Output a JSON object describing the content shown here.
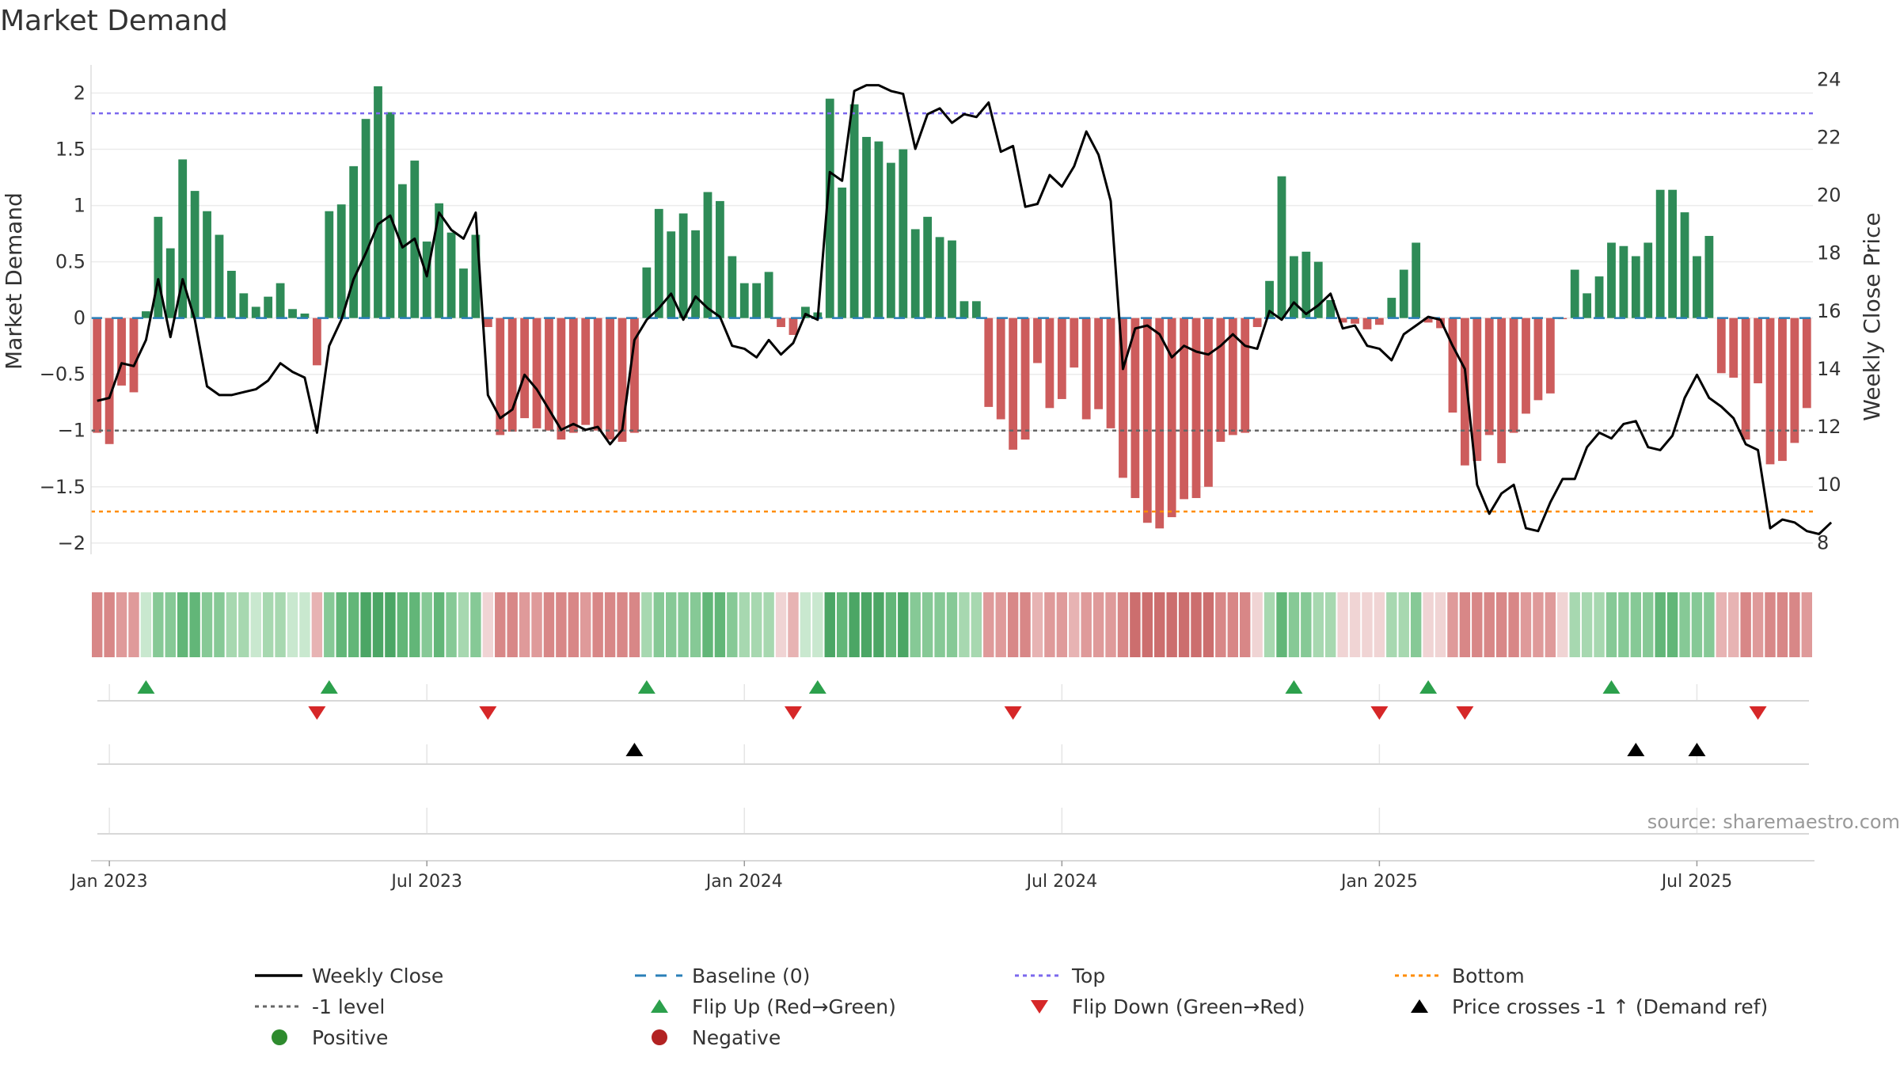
{
  "chart_data": {
    "type": "bar",
    "title": "Market Demand",
    "ylabel": "Market Demand",
    "y2label": "Weekly Close Price",
    "ylim": [
      -2.1,
      2.25
    ],
    "y2lim": [
      7.6,
      24.5
    ],
    "yticks": [
      {
        "v": 2,
        "label": "2"
      },
      {
        "v": 1.5,
        "label": "1.5"
      },
      {
        "v": 1,
        "label": "1"
      },
      {
        "v": 0.5,
        "label": "0.5"
      },
      {
        "v": 0,
        "label": "0"
      },
      {
        "v": -0.5,
        "label": "−0.5"
      },
      {
        "v": -1,
        "label": "−1"
      },
      {
        "v": -1.5,
        "label": "−1.5"
      },
      {
        "v": -2,
        "label": "−2"
      }
    ],
    "y2ticks": [
      {
        "v": 24,
        "label": "24"
      },
      {
        "v": 22,
        "label": "22"
      },
      {
        "v": 20,
        "label": "20"
      },
      {
        "v": 18,
        "label": "18"
      },
      {
        "v": 16,
        "label": "16"
      },
      {
        "v": 14,
        "label": "14"
      },
      {
        "v": 12,
        "label": "12"
      },
      {
        "v": 10,
        "label": "10"
      },
      {
        "v": 8,
        "label": "8"
      }
    ],
    "xticks": [
      {
        "week": 1.5,
        "label": "Jan 2023"
      },
      {
        "week": 27.5,
        "label": "Jul 2023"
      },
      {
        "week": 53.5,
        "label": "Jan 2024"
      },
      {
        "week": 79.5,
        "label": "Jul 2024"
      },
      {
        "week": 105.5,
        "label": "Jan 2025"
      },
      {
        "week": 131.5,
        "label": "Jul 2025"
      }
    ],
    "levels": {
      "top": 1.82,
      "bottom": -1.72,
      "minus_one": -1,
      "baseline": 0
    },
    "demand": [
      -1.02,
      -1.12,
      -0.6,
      -0.66,
      0.06,
      0.9,
      0.62,
      1.41,
      1.13,
      0.95,
      0.74,
      0.42,
      0.22,
      0.1,
      0.19,
      0.31,
      0.08,
      0.04,
      -0.42,
      0.95,
      1.01,
      1.35,
      1.77,
      2.06,
      1.83,
      1.19,
      1.4,
      0.68,
      1.02,
      0.76,
      0.44,
      0.74,
      -0.08,
      -1.04,
      -1.01,
      -0.89,
      -0.98,
      -1.0,
      -1.08,
      -1.02,
      -0.95,
      -1.0,
      -1.08,
      -1.1,
      -1.02,
      0.45,
      0.97,
      0.77,
      0.93,
      0.78,
      1.12,
      1.04,
      0.55,
      0.31,
      0.31,
      0.41,
      -0.08,
      -0.15,
      0.1,
      0.05,
      1.95,
      1.16,
      1.9,
      1.61,
      1.57,
      1.38,
      1.5,
      0.79,
      0.9,
      0.72,
      0.69,
      0.15,
      0.15,
      -0.79,
      -0.9,
      -1.17,
      -1.08,
      -0.4,
      -0.8,
      -0.72,
      -0.44,
      -0.9,
      -0.81,
      -0.98,
      -1.42,
      -1.6,
      -1.82,
      -1.87,
      -1.77,
      -1.61,
      -1.6,
      -1.5,
      -1.1,
      -1.04,
      -1.02,
      -0.08,
      0.33,
      1.26,
      0.55,
      0.59,
      0.5,
      0.16,
      -0.04,
      -0.05,
      -0.1,
      -0.06,
      0.18,
      0.43,
      0.67,
      -0.04,
      -0.09,
      -0.84,
      -1.31,
      -1.27,
      -1.04,
      -1.29,
      -1.02,
      -0.85,
      -0.73,
      -0.67,
      -0.01,
      0.43,
      0.22,
      0.37,
      0.67,
      0.64,
      0.55,
      0.67,
      1.14,
      1.14,
      0.94,
      0.55,
      0.73,
      -0.49,
      -0.53,
      -1.08,
      -0.58,
      -1.3,
      -1.27,
      -1.11,
      -0.8
    ],
    "close": [
      12.9,
      13.0,
      14.2,
      14.1,
      15.0,
      17.1,
      15.1,
      17.1,
      15.7,
      13.4,
      13.1,
      13.1,
      13.2,
      13.3,
      13.6,
      14.2,
      13.9,
      13.7,
      11.8,
      14.8,
      15.7,
      17.1,
      18.0,
      19.0,
      19.3,
      18.2,
      18.5,
      17.2,
      19.4,
      18.8,
      18.5,
      19.4,
      13.1,
      12.3,
      12.6,
      13.8,
      13.3,
      12.6,
      11.9,
      12.1,
      11.9,
      12.0,
      11.4,
      11.9,
      15.0,
      15.7,
      16.1,
      16.6,
      15.7,
      16.5,
      16.1,
      15.8,
      14.8,
      14.7,
      14.4,
      15.0,
      14.5,
      14.9,
      15.9,
      15.7,
      20.8,
      20.5,
      23.6,
      23.8,
      23.8,
      23.6,
      23.5,
      21.6,
      22.8,
      23.0,
      22.5,
      22.8,
      22.7,
      23.2,
      21.5,
      21.7,
      19.6,
      19.7,
      20.7,
      20.3,
      21.0,
      22.2,
      21.4,
      19.8,
      14.0,
      15.4,
      15.5,
      15.2,
      14.4,
      14.8,
      14.6,
      14.5,
      14.8,
      15.2,
      14.8,
      14.7,
      16.0,
      15.7,
      16.3,
      15.9,
      16.2,
      16.6,
      15.4,
      15.5,
      14.8,
      14.7,
      14.3,
      15.2,
      15.5,
      15.8,
      15.7,
      14.8,
      14.0,
      10.0,
      9.0,
      9.7,
      10.0,
      8.5,
      8.4,
      9.4,
      10.2,
      10.2,
      11.3,
      11.8,
      11.6,
      12.1,
      12.2,
      11.3,
      11.2,
      11.7,
      13.0,
      13.8,
      13.0,
      12.7,
      12.3,
      11.4,
      11.2,
      8.5,
      8.8,
      8.7,
      8.4,
      8.3,
      8.7
    ],
    "heat_colors": {
      "pos": [
        "#c9e8cf",
        "#a7d8b0",
        "#86c996",
        "#62b678",
        "#4ba665"
      ],
      "neg": [
        "#f0d4d4",
        "#e7b3b3",
        "#df9a9a",
        "#d88787",
        "#cc6e6e"
      ]
    },
    "flip_up_weeks": [
      4.5,
      19.5,
      45.5,
      59.5,
      98.5,
      109.5,
      124.5
    ],
    "flip_down_weeks": [
      18.5,
      32.5,
      57.5,
      75.5,
      105.5,
      112.5,
      136.5
    ],
    "cross_weeks": [
      44.5,
      126.5,
      131.5
    ],
    "source": "source: sharemaestro.com",
    "legend": [
      {
        "label": "Weekly Close",
        "icon": "line-solid",
        "color": "#000000"
      },
      {
        "label": "Baseline (0)",
        "icon": "line-dash",
        "color": "#2a7fb8"
      },
      {
        "label": "Top",
        "icon": "line-dot",
        "color": "#7b68ee"
      },
      {
        "label": "Bottom",
        "icon": "line-dot",
        "color": "#ff8c00"
      },
      {
        "label": "-1 level",
        "icon": "line-dot",
        "color": "#666666"
      },
      {
        "label": "Flip Up (Red→Green)",
        "icon": "triangle-up",
        "color": "#2ca04c"
      },
      {
        "label": "Flip Down (Green→Red)",
        "icon": "triangle-down",
        "color": "#d62728"
      },
      {
        "label": "Price crosses -1 ↑ (Demand ref)",
        "icon": "triangle-up",
        "color": "#000000"
      },
      {
        "label": "Positive",
        "icon": "circle",
        "color": "#2e8b2e"
      },
      {
        "label": "Negative",
        "icon": "circle",
        "color": "#b22222"
      }
    ],
    "colors": {
      "pos_bar": "#2e8b57",
      "neg_bar": "#cd5c5c",
      "close_line": "#000000",
      "baseline": "#2a7fb8",
      "top": "#7b68ee",
      "bottom": "#ff8c00",
      "minus_one": "#666666"
    }
  }
}
